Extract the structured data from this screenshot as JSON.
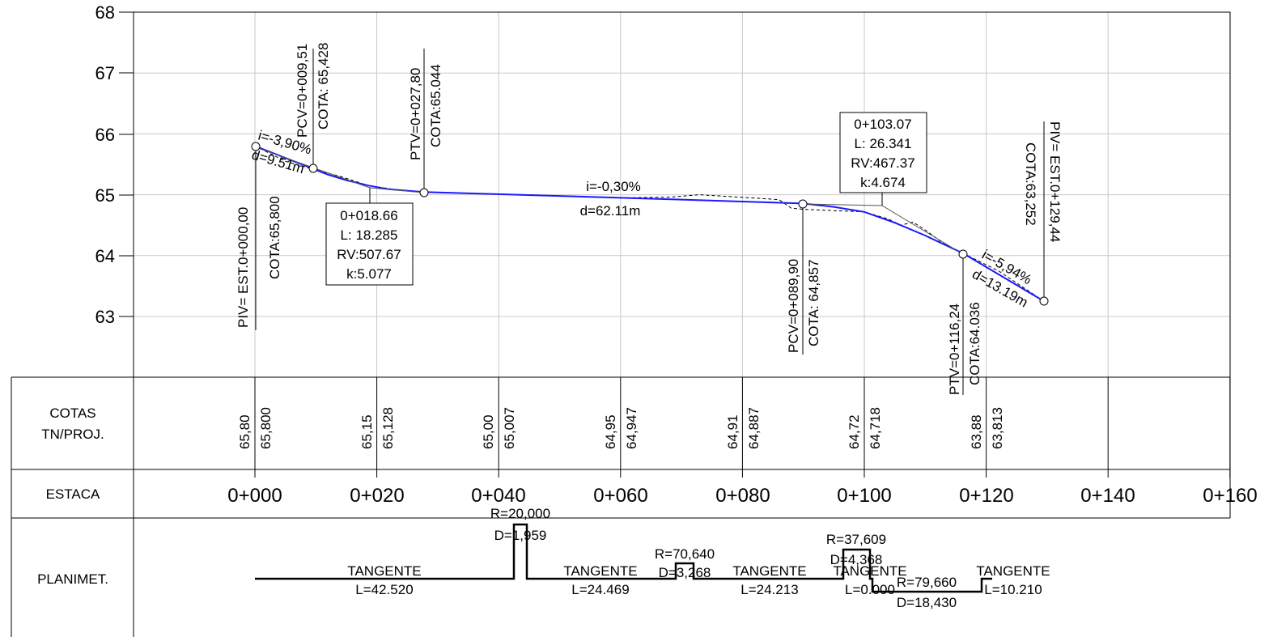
{
  "axis": {
    "y_ticks": [
      "68",
      "67",
      "66",
      "65",
      "64",
      "63"
    ],
    "y_min": 62.3,
    "y_max": 68,
    "x_min": 0,
    "x_max": 160
  },
  "labels": {
    "cotas_line1": "COTAS",
    "cotas_line2": "TN/PROJ.",
    "estaca": "ESTACA",
    "planimet": "PLANIMET."
  },
  "stations": [
    "0+000",
    "0+020",
    "0+040",
    "0+060",
    "0+080",
    "0+100",
    "0+120",
    "0+140",
    "0+160"
  ],
  "cotas": [
    {
      "tn": "65,80",
      "proj": "65,800"
    },
    {
      "tn": "65,15",
      "proj": "65,128"
    },
    {
      "tn": "65,00",
      "proj": "65,007"
    },
    {
      "tn": "64,95",
      "proj": "64,947"
    },
    {
      "tn": "64,91",
      "proj": "64,887"
    },
    {
      "tn": "64,72",
      "proj": "64,718"
    },
    {
      "tn": "63,88",
      "proj": "63,813"
    }
  ],
  "profile": {
    "project_line": [
      [
        0,
        65.8
      ],
      [
        9.51,
        65.428
      ],
      [
        12,
        65.33
      ],
      [
        15,
        65.24
      ],
      [
        18.66,
        65.15
      ],
      [
        22,
        65.09
      ],
      [
        27.8,
        65.044
      ],
      [
        50,
        64.98
      ],
      [
        70,
        64.92
      ],
      [
        89.9,
        64.857
      ],
      [
        95,
        64.8
      ],
      [
        100,
        64.718
      ],
      [
        105,
        64.54
      ],
      [
        110,
        64.33
      ],
      [
        116.24,
        64.036
      ],
      [
        129.44,
        63.252
      ]
    ],
    "terrain_line": [
      [
        0,
        65.8
      ],
      [
        5,
        65.55
      ],
      [
        9.51,
        65.42
      ],
      [
        14,
        65.3
      ],
      [
        18.66,
        65.15
      ],
      [
        24,
        65.07
      ],
      [
        27.8,
        65.04
      ],
      [
        45,
        65.0
      ],
      [
        60,
        64.95
      ],
      [
        68,
        64.96
      ],
      [
        73,
        65.0
      ],
      [
        78,
        64.97
      ],
      [
        86,
        64.92
      ],
      [
        88,
        64.78
      ],
      [
        90,
        64.76
      ],
      [
        95,
        64.74
      ],
      [
        100,
        64.72
      ],
      [
        104,
        64.6
      ],
      [
        106,
        64.5
      ],
      [
        108,
        64.55
      ],
      [
        110,
        64.42
      ],
      [
        113,
        64.2
      ],
      [
        116.24,
        64.036
      ],
      [
        122,
        63.75
      ],
      [
        129.44,
        63.252
      ]
    ]
  },
  "annotations": {
    "piv_start": {
      "line1": "PIV= EST.0+000,00",
      "line2": "COTA:65,800"
    },
    "pcv1": {
      "line1": "PCV=0+009,51",
      "line2": "COTA: 65,428"
    },
    "ptv1": {
      "line1": "PTV=0+027,80",
      "line2": "COTA:65.044"
    },
    "pcv2": {
      "line1": "PCV=0+089,90",
      "line2": "COTA: 64,857"
    },
    "ptv2": {
      "line1": "PTV=0+116,24",
      "line2": "COTA:64.036"
    },
    "piv_end": {
      "line1": "PIV= EST.0+129,44",
      "line2": "COTA:63,252"
    },
    "curve1": [
      "0+018.66",
      "L: 18.285",
      "RV:507.67",
      "k:5.077"
    ],
    "curve2": [
      "0+103.07",
      "L: 26.341",
      "RV:467.37",
      "k:4.674"
    ],
    "grade1": {
      "i": "i=-3,90%",
      "d": "d=9.51m"
    },
    "grade2": {
      "i": "i=-0,30%",
      "d": "d=62.11m"
    },
    "grade3": {
      "i": "i=-5,94%",
      "d": "d=13.19m"
    }
  },
  "planimetry": {
    "tangents": [
      {
        "name": "TANGENTE",
        "length": "L=42.520"
      },
      {
        "name": "TANGENTE",
        "length": "L=24.469"
      },
      {
        "name": "TANGENTE",
        "length": "L=24.213"
      },
      {
        "name": "TANGENTE",
        "length": "L=0.000"
      },
      {
        "name": "TANGENTE",
        "length": "L=10.210"
      }
    ],
    "curves": [
      {
        "r": "R=20,000",
        "d": "D=1,959"
      },
      {
        "r": "R=70,640",
        "d": "D=3,268"
      },
      {
        "r": "R=37,609",
        "d": "D=4,368"
      },
      {
        "r": "R=79,660",
        "d": "D=18,430"
      }
    ]
  },
  "colors": {
    "project": "#1a1aff",
    "terrain": "#000000",
    "grid": "#c8c8c8"
  }
}
